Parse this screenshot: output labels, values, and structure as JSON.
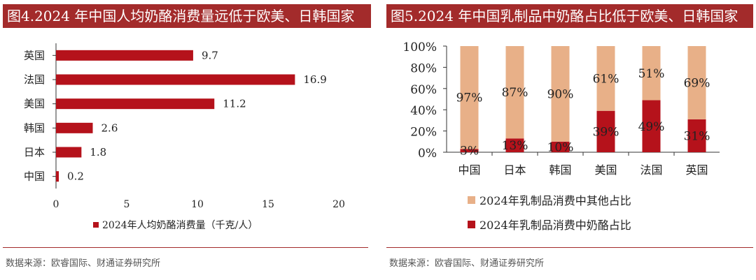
{
  "chart_data": [
    {
      "type": "bar",
      "orientation": "horizontal",
      "title": "图4.2024 年中国人均奶酪消费量远低于欧美、日韩国家",
      "categories": [
        "英国",
        "法国",
        "美国",
        "韩国",
        "日本",
        "中国"
      ],
      "values": [
        9.7,
        16.9,
        11.2,
        2.6,
        1.8,
        0.2
      ],
      "value_labels": [
        "9.7",
        "16.9",
        "11.2",
        "2.6",
        "1.8",
        "0.2"
      ],
      "series_name": "2024年人均奶酪消费量（千克/人）",
      "xlim": [
        0,
        20
      ],
      "xticks": [
        "0",
        "5",
        "10",
        "15",
        "20"
      ],
      "source": "数据来源：欧睿国际、财通证券研究所",
      "colors": {
        "bar": "#b5121b"
      }
    },
    {
      "type": "bar",
      "stacked": true,
      "percent": true,
      "title": "图5.2024 年中国乳制品中奶酪占比低于欧美、日韩国家",
      "categories": [
        "中国",
        "日本",
        "韩国",
        "美国",
        "法国",
        "英国"
      ],
      "series": [
        {
          "name": "2024年乳制品消费中奶酪占比",
          "values": [
            3,
            13,
            10,
            39,
            49,
            31
          ],
          "labels": [
            "3%",
            "13%",
            "10%",
            "39%",
            "49%",
            "31%"
          ]
        },
        {
          "name": "2024年乳制品消费中其他占比",
          "values": [
            97,
            87,
            90,
            61,
            51,
            69
          ],
          "labels": [
            "97%",
            "87%",
            "90%",
            "61%",
            "51%",
            "69%"
          ]
        }
      ],
      "ylim": [
        0,
        100
      ],
      "yticks": [
        "0%",
        "20%",
        "40%",
        "60%",
        "80%",
        "100%"
      ],
      "source": "数据来源：欧睿国际、财通证券研究所",
      "colors": {
        "cheese": "#b5121b",
        "other": "#e8b088"
      }
    }
  ]
}
